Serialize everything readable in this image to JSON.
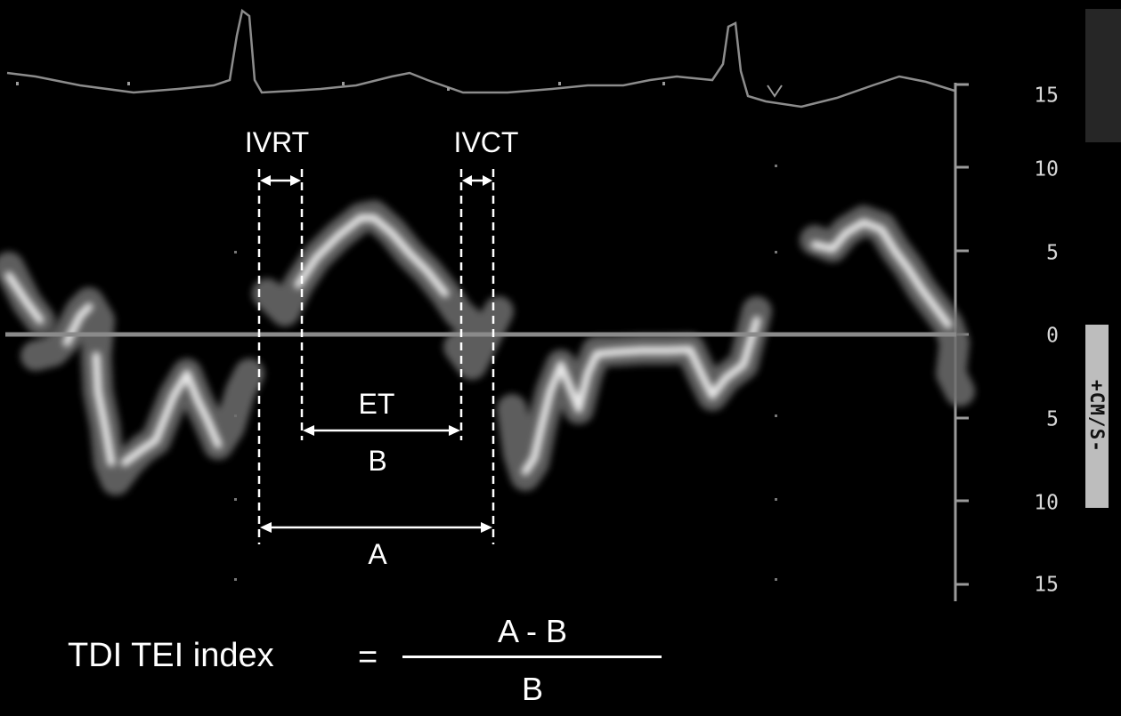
{
  "interval_labels": {
    "ivrt": "IVRT",
    "ivct": "IVCT",
    "et": "ET",
    "b": "B",
    "a": "A"
  },
  "velocity_scale": {
    "tick_labels": [
      "15",
      "10",
      "5",
      "0",
      "5",
      "10",
      "15"
    ],
    "unit": "+CM/S-"
  },
  "formula": {
    "name": "TDI TEI index",
    "equals": "=",
    "numerator": "A - B",
    "denominator": "B"
  },
  "colors": {
    "background": "#000000",
    "signal": "#e6e6e6",
    "baseline": "#8a8a8a",
    "annotation": "#ffffff"
  }
}
